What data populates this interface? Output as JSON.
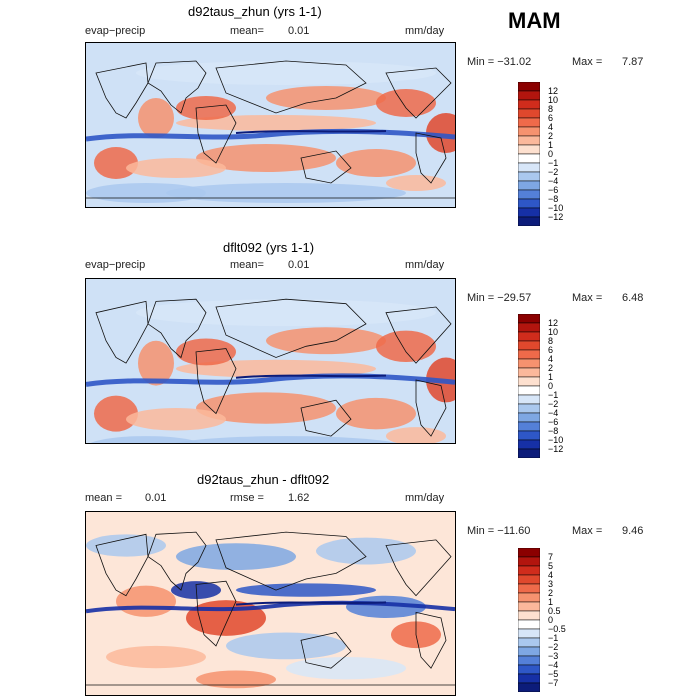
{
  "season": "MAM",
  "panels": [
    {
      "title": "d92taus_zhun (yrs 1-1)",
      "left_label": "evap−precip",
      "mean_label": "mean=",
      "mean_value": "0.01",
      "units": "mm/day",
      "min_label": "Min = −31.02",
      "max_label": "Max =",
      "max_value": "7.87",
      "colorbar_ticks": [
        "12",
        "10",
        "8",
        "6",
        "4",
        "2",
        "1",
        "0",
        "−1",
        "−2",
        "−4",
        "−6",
        "−8",
        "−10",
        "−12"
      ],
      "colorbar_colors": [
        "#8b0000",
        "#b2150e",
        "#d02c1c",
        "#e0482d",
        "#ef6a4a",
        "#f6926f",
        "#fbb89b",
        "#fde0cf",
        "#ffffff",
        "#d7e6f8",
        "#aac8ee",
        "#7ea7e3",
        "#5480d8",
        "#2e57c7",
        "#1630a6",
        "#0c1c7a"
      ]
    },
    {
      "title": "dflt092 (yrs 1-1)",
      "left_label": "evap−precip",
      "mean_label": "mean=",
      "mean_value": "0.01",
      "units": "mm/day",
      "min_label": "Min = −29.57",
      "max_label": "Max =",
      "max_value": "6.48",
      "colorbar_ticks": [
        "12",
        "10",
        "8",
        "6",
        "4",
        "2",
        "1",
        "0",
        "−1",
        "−2",
        "−4",
        "−6",
        "−8",
        "−10",
        "−12"
      ],
      "colorbar_colors": [
        "#8b0000",
        "#b2150e",
        "#d02c1c",
        "#e0482d",
        "#ef6a4a",
        "#f6926f",
        "#fbb89b",
        "#fde0cf",
        "#ffffff",
        "#d7e6f8",
        "#aac8ee",
        "#7ea7e3",
        "#5480d8",
        "#2e57c7",
        "#1630a6",
        "#0c1c7a"
      ]
    },
    {
      "title": "d92taus_zhun - dflt092",
      "left_label": "mean =",
      "left_value": "0.01",
      "mean_label": "rmse =",
      "mean_value": "1.62",
      "units": "mm/day",
      "min_label": "Min = −11.60",
      "max_label": "Max =",
      "max_value": "9.46",
      "colorbar_ticks": [
        "7",
        "5",
        "4",
        "3",
        "2",
        "1",
        "0.5",
        "0",
        "−0.5",
        "−1",
        "−2",
        "−3",
        "−4",
        "−5",
        "−7"
      ],
      "colorbar_colors": [
        "#8b0000",
        "#b2150e",
        "#d02c1c",
        "#e0482d",
        "#ef6a4a",
        "#f6926f",
        "#fbb89b",
        "#fde0cf",
        "#ffffff",
        "#d7e6f8",
        "#aac8ee",
        "#7ea7e3",
        "#5480d8",
        "#2e57c7",
        "#1630a6",
        "#0c1c7a"
      ]
    }
  ]
}
